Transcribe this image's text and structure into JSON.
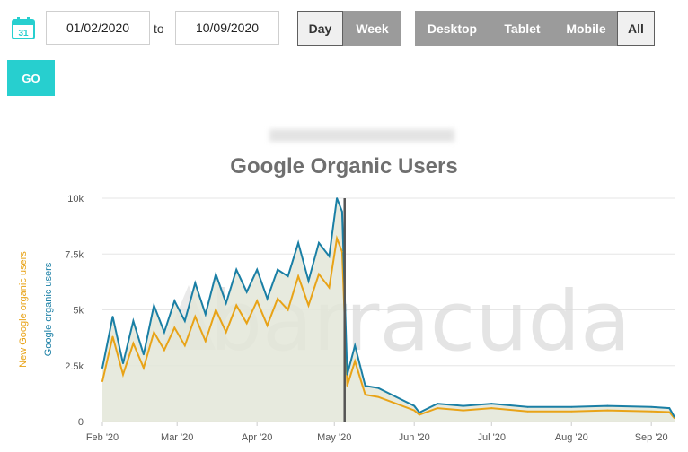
{
  "controls": {
    "date_from": "01/02/2020",
    "to_label": "to",
    "date_to": "10/09/2020",
    "granularity": [
      {
        "label": "Day",
        "active": true
      },
      {
        "label": "Week",
        "active": false
      }
    ],
    "devices": [
      {
        "label": "Desktop",
        "active": false
      },
      {
        "label": "Tablet",
        "active": false
      },
      {
        "label": "Mobile",
        "active": false
      },
      {
        "label": "All",
        "active": true
      }
    ],
    "go_label": "GO",
    "calendar_day": "31",
    "calendar_icon": "calendar-icon"
  },
  "colors": {
    "accent": "#27cfcf",
    "users": "#1a7fa5",
    "new_users": "#e8a317",
    "area_fill": "#e3e6d8",
    "marker": "#555555",
    "watermark": "#dcdcdc"
  },
  "watermark": "barracuda",
  "chart_data": {
    "type": "line",
    "title": "Google Organic Users",
    "ylabels": [
      "Google organic users",
      "New Google organic users"
    ],
    "xlabel": "",
    "x_start": "2020-02-01",
    "x_end": "2020-09-10",
    "ylim": [
      0,
      10000
    ],
    "yticks": [
      {
        "value": 0,
        "label": "0"
      },
      {
        "value": 2500,
        "label": "2.5k"
      },
      {
        "value": 5000,
        "label": "5k"
      },
      {
        "value": 7500,
        "label": "7.5k"
      },
      {
        "value": 10000,
        "label": "10k"
      }
    ],
    "xticks": [
      {
        "date": "2020-02-01",
        "label": "Feb '20"
      },
      {
        "date": "2020-03-01",
        "label": "Mar '20"
      },
      {
        "date": "2020-04-01",
        "label": "Apr '20"
      },
      {
        "date": "2020-05-01",
        "label": "May '20"
      },
      {
        "date": "2020-06-01",
        "label": "Jun '20"
      },
      {
        "date": "2020-07-01",
        "label": "Jul '20"
      },
      {
        "date": "2020-08-01",
        "label": "Aug '20"
      },
      {
        "date": "2020-09-01",
        "label": "Sep '20"
      }
    ],
    "marker_date": "2020-05-05",
    "grid": true,
    "legend": "none",
    "series": [
      {
        "name": "Google organic users",
        "points": [
          [
            "2020-02-01",
            2400
          ],
          [
            "2020-02-05",
            4700
          ],
          [
            "2020-02-09",
            2600
          ],
          [
            "2020-02-13",
            4500
          ],
          [
            "2020-02-17",
            3000
          ],
          [
            "2020-02-21",
            5200
          ],
          [
            "2020-02-25",
            4000
          ],
          [
            "2020-02-29",
            5400
          ],
          [
            "2020-03-04",
            4500
          ],
          [
            "2020-03-08",
            6200
          ],
          [
            "2020-03-12",
            4800
          ],
          [
            "2020-03-16",
            6600
          ],
          [
            "2020-03-20",
            5300
          ],
          [
            "2020-03-24",
            6800
          ],
          [
            "2020-03-28",
            5800
          ],
          [
            "2020-04-01",
            6800
          ],
          [
            "2020-04-05",
            5500
          ],
          [
            "2020-04-09",
            6800
          ],
          [
            "2020-04-13",
            6500
          ],
          [
            "2020-04-17",
            8000
          ],
          [
            "2020-04-21",
            6300
          ],
          [
            "2020-04-25",
            8000
          ],
          [
            "2020-04-29",
            7400
          ],
          [
            "2020-05-02",
            10000
          ],
          [
            "2020-05-04",
            9400
          ],
          [
            "2020-05-06",
            2100
          ],
          [
            "2020-05-09",
            3400
          ],
          [
            "2020-05-13",
            1600
          ],
          [
            "2020-05-18",
            1500
          ],
          [
            "2020-05-25",
            1100
          ],
          [
            "2020-06-01",
            700
          ],
          [
            "2020-06-03",
            400
          ],
          [
            "2020-06-10",
            800
          ],
          [
            "2020-06-20",
            700
          ],
          [
            "2020-07-01",
            800
          ],
          [
            "2020-07-15",
            650
          ],
          [
            "2020-08-01",
            650
          ],
          [
            "2020-08-15",
            700
          ],
          [
            "2020-09-01",
            650
          ],
          [
            "2020-09-08",
            600
          ],
          [
            "2020-09-10",
            200
          ]
        ]
      },
      {
        "name": "New Google organic users",
        "points": [
          [
            "2020-02-01",
            1800
          ],
          [
            "2020-02-05",
            3800
          ],
          [
            "2020-02-09",
            2100
          ],
          [
            "2020-02-13",
            3500
          ],
          [
            "2020-02-17",
            2400
          ],
          [
            "2020-02-21",
            4000
          ],
          [
            "2020-02-25",
            3200
          ],
          [
            "2020-02-29",
            4200
          ],
          [
            "2020-03-04",
            3400
          ],
          [
            "2020-03-08",
            4700
          ],
          [
            "2020-03-12",
            3600
          ],
          [
            "2020-03-16",
            5000
          ],
          [
            "2020-03-20",
            4000
          ],
          [
            "2020-03-24",
            5200
          ],
          [
            "2020-03-28",
            4400
          ],
          [
            "2020-04-01",
            5400
          ],
          [
            "2020-04-05",
            4300
          ],
          [
            "2020-04-09",
            5500
          ],
          [
            "2020-04-13",
            5000
          ],
          [
            "2020-04-17",
            6500
          ],
          [
            "2020-04-21",
            5200
          ],
          [
            "2020-04-25",
            6600
          ],
          [
            "2020-04-29",
            6000
          ],
          [
            "2020-05-02",
            8200
          ],
          [
            "2020-05-04",
            7600
          ],
          [
            "2020-05-06",
            1600
          ],
          [
            "2020-05-09",
            2700
          ],
          [
            "2020-05-13",
            1200
          ],
          [
            "2020-05-18",
            1100
          ],
          [
            "2020-05-25",
            800
          ],
          [
            "2020-06-01",
            500
          ],
          [
            "2020-06-03",
            300
          ],
          [
            "2020-06-10",
            600
          ],
          [
            "2020-06-20",
            500
          ],
          [
            "2020-07-01",
            600
          ],
          [
            "2020-07-15",
            450
          ],
          [
            "2020-08-01",
            450
          ],
          [
            "2020-08-15",
            500
          ],
          [
            "2020-09-01",
            450
          ],
          [
            "2020-09-08",
            420
          ],
          [
            "2020-09-10",
            150
          ]
        ]
      }
    ]
  }
}
